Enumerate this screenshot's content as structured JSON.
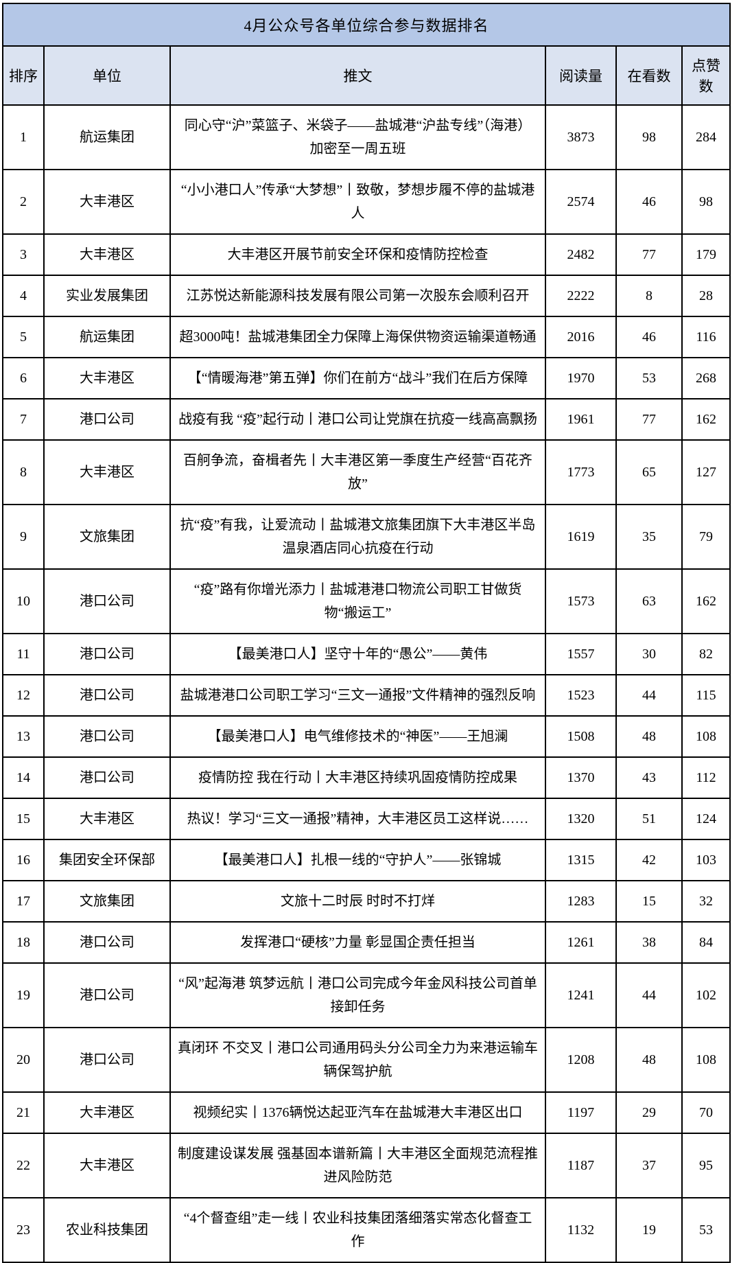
{
  "title": "4月公众号各单位综合参与数据排名",
  "colors": {
    "title_bg": "#b4c7e7",
    "header_bg": "#dbe3f1",
    "border": "#000000",
    "text": "#000000"
  },
  "table": {
    "headers": [
      "排序",
      "单位",
      "推文",
      "阅读量",
      "在看数",
      "点赞数"
    ],
    "rows": [
      {
        "rank": "1",
        "unit": "航运集团",
        "tweet": "同心守“沪”菜篮子、米袋子——盐城港“沪盐专线”（海港）加密至一周五班",
        "reads": "3873",
        "watching": "98",
        "likes": "284"
      },
      {
        "rank": "2",
        "unit": "大丰港区",
        "tweet": "“小小港口人”传承“大梦想”丨致敬，梦想步履不停的盐城港人",
        "reads": "2574",
        "watching": "46",
        "likes": "98"
      },
      {
        "rank": "3",
        "unit": "大丰港区",
        "tweet": "大丰港区开展节前安全环保和疫情防控检查",
        "reads": "2482",
        "watching": "77",
        "likes": "179"
      },
      {
        "rank": "4",
        "unit": "实业发展集团",
        "tweet": "江苏悦达新能源科技发展有限公司第一次股东会顺利召开",
        "reads": "2222",
        "watching": "8",
        "likes": "28"
      },
      {
        "rank": "5",
        "unit": "航运集团",
        "tweet": "超3000吨！盐城港集团全力保障上海保供物资运输渠道畅通",
        "reads": "2016",
        "watching": "46",
        "likes": "116"
      },
      {
        "rank": "6",
        "unit": "大丰港区",
        "tweet": "【“情暖海港”第五弹】你们在前方“战斗”我们在后方保障",
        "reads": "1970",
        "watching": "53",
        "likes": "268"
      },
      {
        "rank": "7",
        "unit": "港口公司",
        "tweet": "战疫有我 “疫”起行动丨港口公司让党旗在抗疫一线高高飘扬",
        "reads": "1961",
        "watching": "77",
        "likes": "162"
      },
      {
        "rank": "8",
        "unit": "大丰港区",
        "tweet": "百舸争流，奋楫者先丨大丰港区第一季度生产经营“百花齐放”",
        "reads": "1773",
        "watching": "65",
        "likes": "127"
      },
      {
        "rank": "9",
        "unit": "文旅集团",
        "tweet": "抗“疫”有我，让爱流动丨盐城港文旅集团旗下大丰港区半岛温泉酒店同心抗疫在行动",
        "reads": "1619",
        "watching": "35",
        "likes": "79"
      },
      {
        "rank": "10",
        "unit": "港口公司",
        "tweet": "“疫”路有你增光添力丨盐城港港口物流公司职工甘做货物“搬运工”",
        "reads": "1573",
        "watching": "63",
        "likes": "162"
      },
      {
        "rank": "11",
        "unit": "港口公司",
        "tweet": "【最美港口人】坚守十年的“愚公”——黄伟",
        "reads": "1557",
        "watching": "30",
        "likes": "82"
      },
      {
        "rank": "12",
        "unit": "港口公司",
        "tweet": "盐城港港口公司职工学习“三文一通报”文件精神的强烈反响",
        "reads": "1523",
        "watching": "44",
        "likes": "115"
      },
      {
        "rank": "13",
        "unit": "港口公司",
        "tweet": "【最美港口人】电气维修技术的“神医”——王旭澜",
        "reads": "1508",
        "watching": "48",
        "likes": "108"
      },
      {
        "rank": "14",
        "unit": "港口公司",
        "tweet": "疫情防控 我在行动丨大丰港区持续巩固疫情防控成果",
        "reads": "1370",
        "watching": "43",
        "likes": "112"
      },
      {
        "rank": "15",
        "unit": "大丰港区",
        "tweet": "热议！学习“三文一通报”精神，大丰港区员工这样说……",
        "reads": "1320",
        "watching": "51",
        "likes": "124"
      },
      {
        "rank": "16",
        "unit": "集团安全环保部",
        "tweet": "【最美港口人】扎根一线的“守护人”——张锦城",
        "reads": "1315",
        "watching": "42",
        "likes": "103"
      },
      {
        "rank": "17",
        "unit": "文旅集团",
        "tweet": "文旅十二时辰 时时不打烊",
        "reads": "1283",
        "watching": "15",
        "likes": "32"
      },
      {
        "rank": "18",
        "unit": "港口公司",
        "tweet": "发挥港口“硬核”力量 彰显国企责任担当",
        "reads": "1261",
        "watching": "38",
        "likes": "84"
      },
      {
        "rank": "19",
        "unit": "港口公司",
        "tweet": "“风”起海港 筑梦远航丨港口公司完成今年金风科技公司首单接卸任务",
        "reads": "1241",
        "watching": "44",
        "likes": "102"
      },
      {
        "rank": "20",
        "unit": "港口公司",
        "tweet": "真闭环 不交叉丨港口公司通用码头分公司全力为来港运输车辆保驾护航",
        "reads": "1208",
        "watching": "48",
        "likes": "108"
      },
      {
        "rank": "21",
        "unit": "大丰港区",
        "tweet": "视频纪实丨1376辆悦达起亚汽车在盐城港大丰港区出口",
        "reads": "1197",
        "watching": "29",
        "likes": "70"
      },
      {
        "rank": "22",
        "unit": "大丰港区",
        "tweet": "制度建设谋发展 强基固本谱新篇丨大丰港区全面规范流程推进风险防范",
        "reads": "1187",
        "watching": "37",
        "likes": "95"
      },
      {
        "rank": "23",
        "unit": "农业科技集团",
        "tweet": "“4个督查组”走一线丨农业科技集团落细落实常态化督查工作",
        "reads": "1132",
        "watching": "19",
        "likes": "53"
      }
    ]
  }
}
